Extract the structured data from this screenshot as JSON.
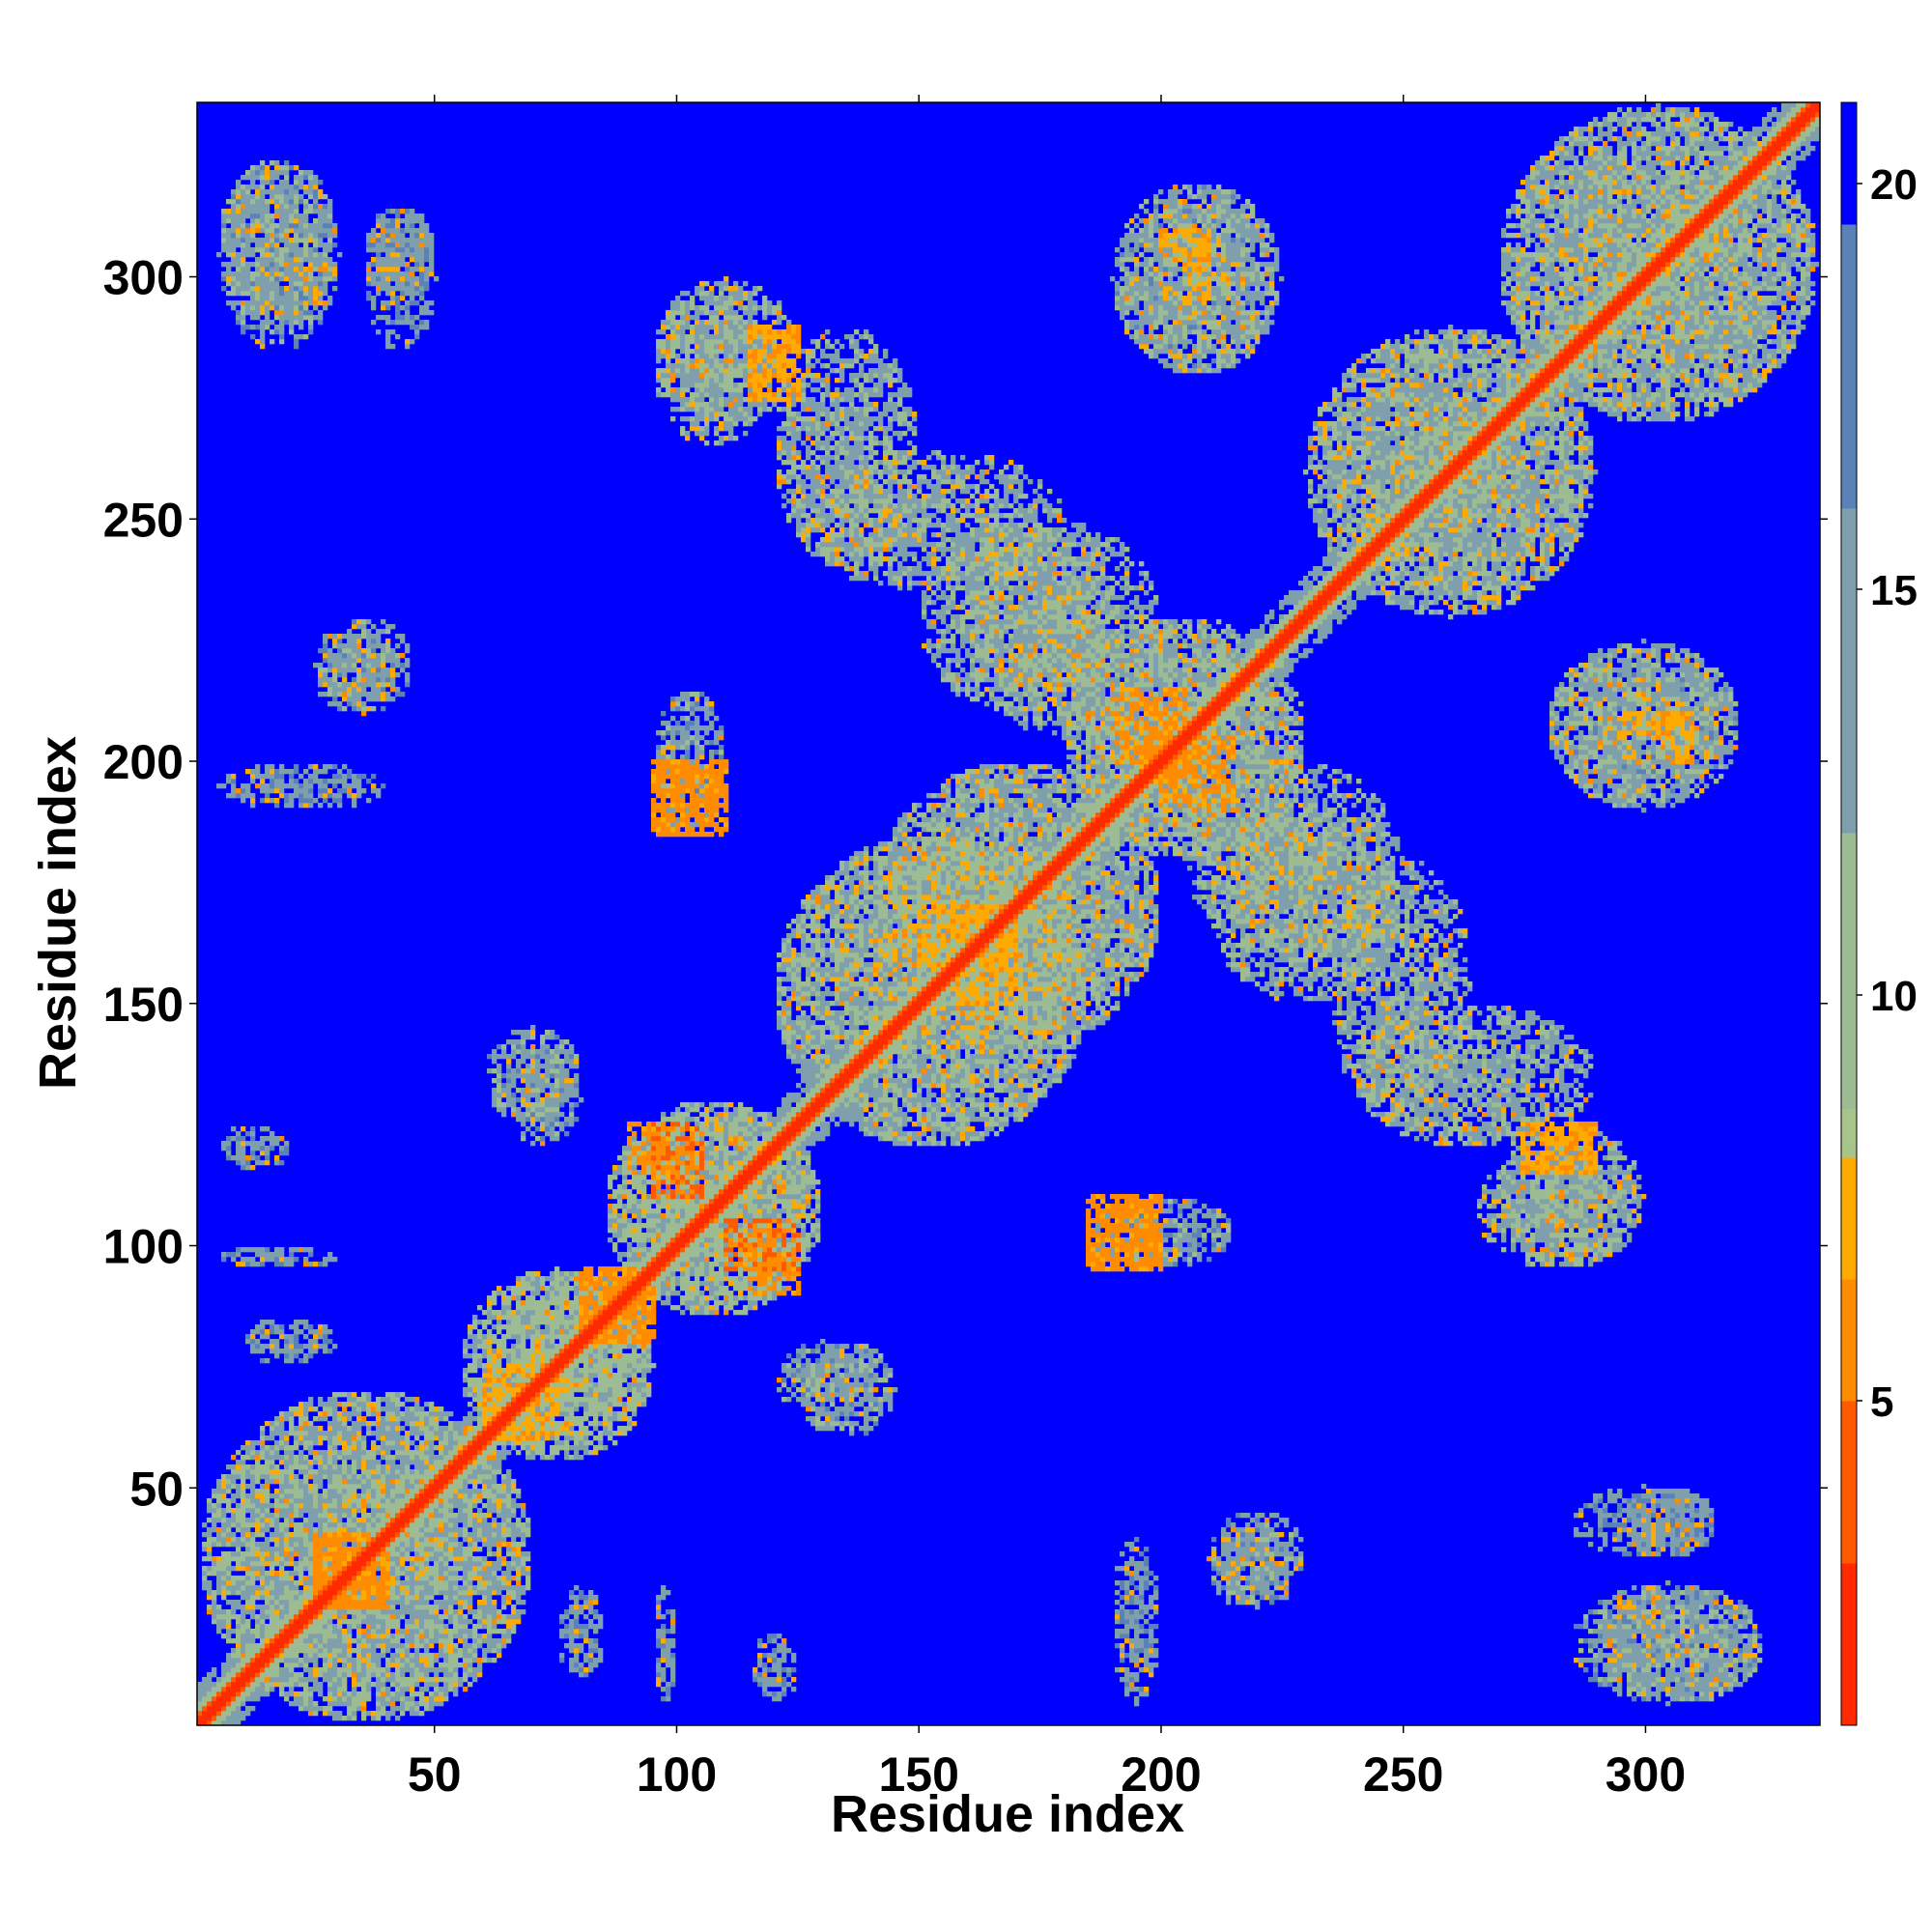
{
  "chart_data": {
    "type": "heatmap",
    "title": "",
    "xlabel": "Residue index",
    "ylabel": "Residue index",
    "n_residues": 336,
    "xlim": [
      1,
      336
    ],
    "ylim": [
      1,
      336
    ],
    "x_ticks": [
      50,
      100,
      150,
      200,
      250,
      300
    ],
    "y_ticks": [
      50,
      100,
      150,
      200,
      250,
      300
    ],
    "value_range": [
      1,
      21
    ],
    "colorbar_ticks": [
      5,
      10,
      15,
      20
    ],
    "colormap": [
      {
        "value": 1,
        "color": "#ff0000"
      },
      {
        "value": 3,
        "color": "#ff2a00"
      },
      {
        "value": 5,
        "color": "#ff5a00"
      },
      {
        "value": 6.5,
        "color": "#ff8c00"
      },
      {
        "value": 8,
        "color": "#ffaa00"
      },
      {
        "value": 8.6,
        "color": "#a7c48a"
      },
      {
        "value": 12,
        "color": "#9ebc94"
      },
      {
        "value": 16,
        "color": "#7f9fad"
      },
      {
        "value": 19.5,
        "color": "#5b82b8"
      },
      {
        "value": 20.5,
        "color": "#0000ff"
      }
    ],
    "background_value": 21,
    "background_color": "#0000ff",
    "symmetric": true,
    "diagonal_band": {
      "width": 8
    },
    "contact_regions": [
      {
        "x": [
          1,
          70
        ],
        "y": [
          1,
          70
        ],
        "value": 12
      },
      {
        "x": [
          55,
          95
        ],
        "y": [
          55,
          95
        ],
        "value": 11
      },
      {
        "x": [
          85,
          130
        ],
        "y": [
          85,
          130
        ],
        "value": 11
      },
      {
        "x": [
          120,
          185
        ],
        "y": [
          120,
          185
        ],
        "value": 12
      },
      {
        "x": [
          140,
          200
        ],
        "y": [
          140,
          200
        ],
        "value": 12
      },
      {
        "x": [
          180,
          230
        ],
        "y": [
          180,
          230
        ],
        "value": 12
      },
      {
        "x": [
          230,
          290
        ],
        "y": [
          230,
          290
        ],
        "value": 12
      },
      {
        "x": [
          270,
          336
        ],
        "y": [
          270,
          336
        ],
        "value": 12
      },
      {
        "x": [
          5,
          30
        ],
        "y": [
          290,
          325
        ],
        "value": 13
      },
      {
        "x": [
          35,
          50
        ],
        "y": [
          285,
          315
        ],
        "value": 14
      },
      {
        "x": [
          25,
          40
        ],
        "y": [
          210,
          225
        ],
        "value": 13
      },
      {
        "x": [
          60,
          80
        ],
        "y": [
          125,
          145
        ],
        "value": 13
      },
      {
        "x": [
          95,
          120
        ],
        "y": [
          265,
          300
        ],
        "value": 12
      },
      {
        "x": [
          125,
          180
        ],
        "y": [
          235,
          265
        ],
        "value": 12
      },
      {
        "x": [
          160,
          200
        ],
        "y": [
          205,
          250
        ],
        "value": 12
      },
      {
        "x": [
          190,
          225
        ],
        "y": [
          280,
          320
        ],
        "value": 12
      },
      {
        "x": [
          95,
          110
        ],
        "y": [
          185,
          215
        ],
        "value": 13
      },
      {
        "x": [
          210,
          250
        ],
        "y": [
          150,
          190
        ],
        "value": 12
      },
      {
        "x": [
          240,
          290
        ],
        "y": [
          120,
          150
        ],
        "value": 12
      },
      {
        "x": [
          270,
          300
        ],
        "y": [
          95,
          125
        ],
        "value": 12
      },
      {
        "x": [
          120,
          140
        ],
        "y": [
          65,
          80
        ],
        "value": 13
      },
      {
        "x": [
          210,
          230
        ],
        "y": [
          25,
          45
        ],
        "value": 13
      },
      {
        "x": [
          285,
          325
        ],
        "y": [
          5,
          30
        ],
        "value": 13
      },
      {
        "x": [
          295,
          315
        ],
        "y": [
          35,
          50
        ],
        "value": 14
      },
      {
        "x": [
          280,
          320
        ],
        "y": [
          190,
          225
        ],
        "value": 13
      },
      {
        "x": [
          5,
          40
        ],
        "y": [
          190,
          200
        ],
        "value": 14
      },
      {
        "x": [
          5,
          30
        ],
        "y": [
          95,
          100
        ],
        "value": 14
      },
      {
        "x": [
          10,
          30
        ],
        "y": [
          75,
          85
        ],
        "value": 14
      },
      {
        "x": [
          5,
          20
        ],
        "y": [
          115,
          125
        ],
        "value": 14
      }
    ],
    "close_contacts": [
      {
        "x": [
          25,
          40
        ],
        "y": [
          25,
          40
        ],
        "value": 5
      },
      {
        "x": [
          60,
          70
        ],
        "y": [
          60,
          75
        ],
        "value": 6
      },
      {
        "x": [
          80,
          95
        ],
        "y": [
          80,
          95
        ],
        "value": 5
      },
      {
        "x": [
          95,
          105
        ],
        "y": [
          110,
          125
        ],
        "value": 4
      },
      {
        "x": [
          115,
          125
        ],
        "y": [
          90,
          100
        ],
        "value": 5
      },
      {
        "x": [
          95,
          110
        ],
        "y": [
          185,
          200
        ],
        "value": 5
      },
      {
        "x": [
          185,
          200
        ],
        "y": [
          95,
          110
        ],
        "value": 5
      },
      {
        "x": [
          200,
          215
        ],
        "y": [
          190,
          205
        ],
        "value": 5
      },
      {
        "x": [
          115,
          125
        ],
        "y": [
          275,
          290
        ],
        "value": 6
      },
      {
        "x": [
          275,
          290
        ],
        "y": [
          115,
          125
        ],
        "value": 6
      },
      {
        "x": [
          205,
          210
        ],
        "y": [
          295,
          305
        ],
        "value": 6
      },
      {
        "x": [
          305,
          310
        ],
        "y": [
          200,
          210
        ],
        "value": 6
      },
      {
        "x": [
          160,
          170
        ],
        "y": [
          150,
          170
        ],
        "value": 6
      }
    ]
  }
}
